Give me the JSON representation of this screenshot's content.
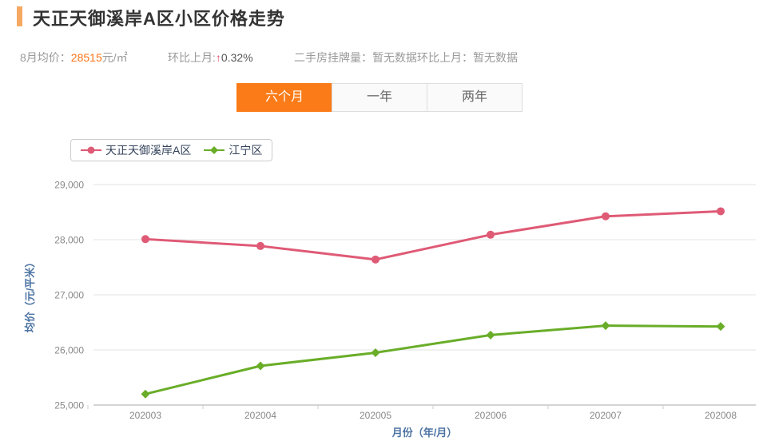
{
  "header": {
    "title": "天正天御溪岸A区小区价格走势"
  },
  "stats": {
    "avg_price_label": "8月均价：",
    "avg_price_value": "28515",
    "avg_price_unit": "元/㎡",
    "mom_label": "环比上月:",
    "mom_arrow": "↑",
    "mom_value": "0.32%",
    "listings_label": "二手房挂牌量：",
    "listings_value": "暂无数据",
    "listings_mom_label": "环比上月：",
    "listings_mom_value": "暂无数据"
  },
  "tabs": [
    {
      "label": "六个月",
      "active": true
    },
    {
      "label": "一年",
      "active": false
    },
    {
      "label": "两年",
      "active": false
    }
  ],
  "colors": {
    "accent_orange": "#fa7b17",
    "accent_bar": "#f5a963",
    "price_orange": "#ff7419",
    "up_red": "#ef4a6b",
    "axis_name_blue": "#4d74a3",
    "tick_gray": "#888888",
    "grid_gray": "#e3e3e3",
    "axis_line_gray": "#aaaaaa",
    "tick_mark_gray": "#cccccc"
  },
  "chart_data": {
    "type": "line",
    "categories": [
      "202003",
      "202004",
      "202005",
      "202006",
      "202007",
      "202008"
    ],
    "series": [
      {
        "name": "天正天御溪岸A区",
        "color": "#df5a75",
        "marker": "circle",
        "values": [
          28010,
          27885,
          27640,
          28090,
          28424,
          28515
        ]
      },
      {
        "name": "江宁区",
        "color": "#69ad28",
        "marker": "diamond",
        "values": [
          25200,
          25710,
          25950,
          26270,
          26440,
          26425
        ]
      }
    ],
    "title": "天正天御溪岸A区小区价格走势",
    "xlabel": "月份（年/月）",
    "ylabel": "均价（元/平米）",
    "ylim": [
      25000,
      29000
    ],
    "ytick_step": 1000,
    "grid": true,
    "legend_position": "top-left"
  }
}
